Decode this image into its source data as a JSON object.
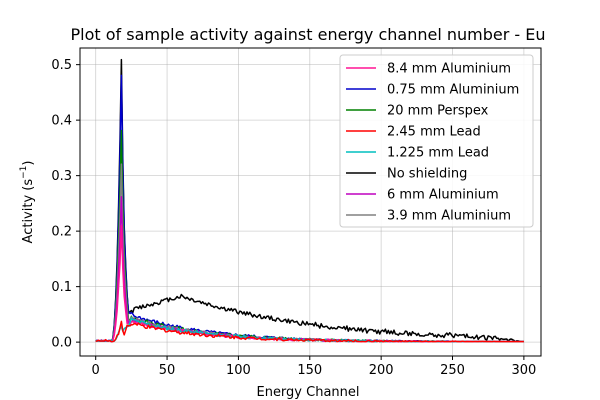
{
  "chart_data": {
    "type": "line",
    "title": "Plot of sample activity against energy channel number - Eu",
    "xlabel": "Energy Channel",
    "ylabel": "Activity (s",
    "ylabel_sup": "−1",
    "ylabel_close": ")",
    "xlim": [
      -11,
      312
    ],
    "ylim": [
      -0.025,
      0.53
    ],
    "xticks": [
      0,
      50,
      100,
      150,
      200,
      250,
      300
    ],
    "yticks": [
      0.0,
      0.1,
      0.2,
      0.3,
      0.4,
      0.5
    ],
    "xtick_labels": [
      "0",
      "50",
      "100",
      "150",
      "200",
      "250",
      "300"
    ],
    "ytick_labels": [
      "0.0",
      "0.1",
      "0.2",
      "0.3",
      "0.4",
      "0.5"
    ],
    "grid": true,
    "legend_position": "top-right",
    "series": [
      {
        "name": "8.4 mm Aluminium",
        "color": "#ff1493",
        "peak": 0.205,
        "tail_scale": 0.85
      },
      {
        "name": "0.75 mm Aluminium",
        "color": "#0000cc",
        "peak": 0.48,
        "tail_scale": 1.1
      },
      {
        "name": "20 mm Perspex",
        "color": "#008000",
        "peak": 0.385,
        "tail_scale": 1.0
      },
      {
        "name": "2.45 mm Lead",
        "color": "#ff0000",
        "peak": 0.035,
        "tail_scale": 0.75
      },
      {
        "name": "1.225 mm Lead",
        "color": "#00bfbf",
        "peak": 0.03,
        "tail_scale": 0.9
      },
      {
        "name": "No shielding",
        "color": "#000000",
        "peak": 0.505,
        "tail_scale": 1.0,
        "hump": true
      },
      {
        "name": "6 mm Aluminium",
        "color": "#bf00bf",
        "peak": 0.262,
        "tail_scale": 0.9
      },
      {
        "name": "3.9 mm Aluminium",
        "color": "#808080",
        "peak": 0.325,
        "tail_scale": 0.95
      }
    ]
  }
}
